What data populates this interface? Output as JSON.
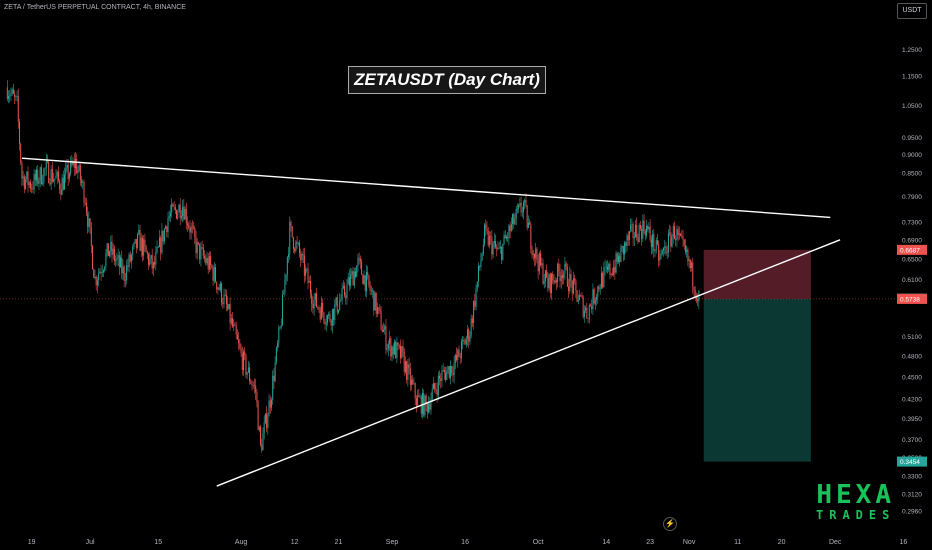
{
  "header": {
    "title": "ZETA / TetherUS PERPETUAL CONTRACT, 4h, BINANCE",
    "unit_label": "USDT"
  },
  "annotation": "ZETAUSDT (Day Chart)",
  "logo": {
    "line1": "HEXA",
    "line2": "TRADES"
  },
  "tv_icon": "tradingview-logo-icon",
  "colors": {
    "up": "#26a69a",
    "down": "#ef5350",
    "trendline": "#ffffff",
    "stop_zone": "#5c1f2b",
    "target_zone": "#0d3b36",
    "logo": "#18c45a"
  },
  "chart_data": {
    "type": "candlestick",
    "symbol": "ZETA / TetherUS PERPETUAL CONTRACT",
    "interval": "4h",
    "exchange": "BINANCE",
    "y_scale": "log",
    "ylim": [
      0.279,
      1.37
    ],
    "y_ticks": [
      "1.2500",
      "1.1500",
      "1.0500",
      "0.9500",
      "0.9000",
      "0.8500",
      "0.7900",
      "0.7300",
      "0.6900",
      "0.6500",
      "0.6100",
      "0.5100",
      "0.4800",
      "0.4500",
      "0.4200",
      "0.3950",
      "0.3700",
      "0.3500",
      "0.3300",
      "0.3120",
      "0.2960"
    ],
    "x_ticks": [
      "19",
      "Jul",
      "15",
      "Aug",
      "12",
      "21",
      "Sep",
      "16",
      "Oct",
      "14",
      "23",
      "Nov",
      "11",
      "20",
      "Dec",
      "16"
    ],
    "price_marks": [
      {
        "label": "0.6687",
        "value": 0.6687,
        "color": "#ef5350"
      },
      {
        "label": "0.5750",
        "value": 0.575,
        "color": "#3a3a3a"
      },
      {
        "label": "0.5738",
        "value": 0.5738,
        "color": "#ef5350"
      },
      {
        "label": "0.3454",
        "value": 0.3454,
        "color": "#26a69a"
      }
    ],
    "close_price": 0.5738,
    "trendlines": [
      {
        "name": "upper resistance",
        "points": [
          [
            "Jun 17",
            0.89
          ],
          [
            "Nov 30",
            0.74
          ]
        ]
      },
      {
        "name": "lower support",
        "points": [
          [
            "Jul 27",
            0.32
          ],
          [
            "Dec 2",
            0.69
          ]
        ]
      }
    ],
    "position": {
      "side": "short",
      "entry": 0.5738,
      "stop": 0.6687,
      "target": 0.3454
    },
    "path": [
      [
        "Jun 14",
        1.11
      ],
      [
        "Jun 16",
        1.05
      ],
      [
        "Jun 17",
        0.84
      ],
      [
        "Jun 19",
        0.82
      ],
      [
        "Jun 22",
        0.86
      ],
      [
        "Jun 25",
        0.82
      ],
      [
        "Jun 28",
        0.88
      ],
      [
        "Jun 30",
        0.79
      ],
      [
        "Jul 2",
        0.61
      ],
      [
        "Jul 5",
        0.67
      ],
      [
        "Jul 8",
        0.62
      ],
      [
        "Jul 11",
        0.69
      ],
      [
        "Jul 14",
        0.63
      ],
      [
        "Jul 17",
        0.74
      ],
      [
        "Jul 20",
        0.77
      ],
      [
        "Jul 23",
        0.67
      ],
      [
        "Jul 26",
        0.63
      ],
      [
        "Jul 29",
        0.56
      ],
      [
        "Aug 1",
        0.48
      ],
      [
        "Aug 4",
        0.43
      ],
      [
        "Aug 5",
        0.36
      ],
      [
        "Aug 7",
        0.42
      ],
      [
        "Aug 9",
        0.52
      ],
      [
        "Aug 11",
        0.71
      ],
      [
        "Aug 13",
        0.66
      ],
      [
        "Aug 16",
        0.57
      ],
      [
        "Aug 19",
        0.54
      ],
      [
        "Aug 22",
        0.58
      ],
      [
        "Aug 25",
        0.64
      ],
      [
        "Aug 28",
        0.58
      ],
      [
        "Aug 31",
        0.5
      ],
      [
        "Sep 3",
        0.48
      ],
      [
        "Sep 6",
        0.42
      ],
      [
        "Sep 8",
        0.41
      ],
      [
        "Sep 11",
        0.45
      ],
      [
        "Sep 14",
        0.47
      ],
      [
        "Sep 17",
        0.52
      ],
      [
        "Sep 20",
        0.7
      ],
      [
        "Sep 23",
        0.66
      ],
      [
        "Sep 26",
        0.73
      ],
      [
        "Sep 28",
        0.77
      ],
      [
        "Sep 30",
        0.67
      ],
      [
        "Oct 3",
        0.6
      ],
      [
        "Oct 6",
        0.63
      ],
      [
        "Oct 9",
        0.58
      ],
      [
        "Oct 11",
        0.55
      ],
      [
        "Oct 14",
        0.61
      ],
      [
        "Oct 17",
        0.64
      ],
      [
        "Oct 20",
        0.7
      ],
      [
        "Oct 23",
        0.72
      ],
      [
        "Oct 26",
        0.65
      ],
      [
        "Oct 29",
        0.71
      ],
      [
        "Nov 1",
        0.64
      ],
      [
        "Nov 3",
        0.5738
      ]
    ]
  }
}
